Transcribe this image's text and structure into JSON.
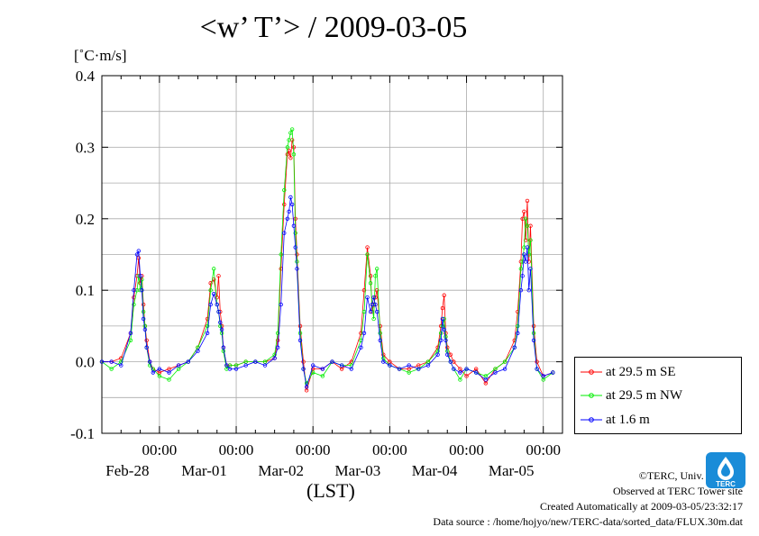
{
  "chart_data": {
    "type": "line",
    "title": "<w’ T’> / 2009-03-05",
    "ylabel": "[˚C·m/s]",
    "xlabel": "(LST)",
    "ylim": [
      -0.1,
      0.4
    ],
    "yticks": [
      "0.4",
      "0.3",
      "0.2",
      "0.1",
      "0.0",
      "-0.1"
    ],
    "x_tick_time": "00:00",
    "x_tick_dates": [
      "Feb-28",
      "Mar-01",
      "Mar-02",
      "Mar-03",
      "Mar-04",
      "Mar-05"
    ],
    "grid": true,
    "legend_position": "right-bottom",
    "x_hours": [
      0,
      3,
      6,
      9,
      10,
      11,
      11.5,
      12,
      12.5,
      13,
      13.5,
      14,
      15,
      16,
      18,
      21,
      24,
      27,
      30,
      33,
      34,
      35,
      36,
      36.5,
      37,
      37.5,
      38,
      39,
      40,
      42,
      45,
      48,
      51,
      54,
      55,
      56,
      57,
      58,
      58.5,
      59,
      59.5,
      60,
      60.5,
      61,
      62,
      63,
      64,
      66,
      69,
      72,
      75,
      78,
      81,
      82,
      83,
      84,
      84.5,
      85,
      85.5,
      86,
      87,
      88,
      90,
      93,
      96,
      99,
      102,
      105,
      106,
      106.5,
      107,
      107.5,
      108,
      109,
      110,
      112,
      114,
      117,
      120,
      123,
      126,
      129,
      130,
      131,
      131.5,
      132,
      132.5,
      133,
      133.5,
      134,
      135,
      136,
      138,
      141
    ],
    "series": [
      {
        "name": "at 29.5 m SE",
        "color": "#ff0000",
        "values": [
          0.0,
          0.0,
          0.005,
          0.04,
          0.09,
          0.12,
          0.145,
          0.11,
          0.12,
          0.08,
          0.05,
          0.03,
          0.0,
          -0.01,
          -0.015,
          -0.01,
          -0.005,
          0.0,
          0.02,
          0.06,
          0.11,
          0.115,
          0.09,
          0.12,
          0.07,
          0.05,
          0.02,
          -0.005,
          -0.005,
          -0.005,
          0.0,
          0.0,
          0.0,
          0.005,
          0.03,
          0.13,
          0.22,
          0.29,
          0.295,
          0.285,
          0.31,
          0.3,
          0.2,
          0.15,
          0.05,
          0.0,
          -0.04,
          -0.01,
          -0.01,
          0.0,
          -0.01,
          0.0,
          0.04,
          0.1,
          0.16,
          0.12,
          0.07,
          0.08,
          0.09,
          0.1,
          0.05,
          0.01,
          0.0,
          -0.01,
          -0.01,
          -0.005,
          0.0,
          0.02,
          0.05,
          0.075,
          0.093,
          0.04,
          0.02,
          0.01,
          0.0,
          -0.01,
          -0.02,
          -0.01,
          -0.03,
          -0.01,
          0.0,
          0.03,
          0.07,
          0.14,
          0.2,
          0.21,
          0.17,
          0.225,
          0.14,
          0.19,
          0.05,
          0.0,
          -0.02,
          -0.015
        ]
      },
      {
        "name": "at 29.5 m NW",
        "color": "#00ee00",
        "values": [
          0.0,
          -0.01,
          0.0,
          0.03,
          0.08,
          0.1,
          0.12,
          0.1,
          0.115,
          0.07,
          0.05,
          0.02,
          -0.005,
          -0.01,
          -0.02,
          -0.025,
          -0.01,
          0.0,
          0.02,
          0.05,
          0.1,
          0.13,
          0.08,
          0.07,
          0.05,
          0.04,
          0.015,
          -0.01,
          -0.005,
          -0.005,
          0.0,
          0.0,
          0.0,
          0.01,
          0.04,
          0.15,
          0.24,
          0.3,
          0.31,
          0.32,
          0.325,
          0.29,
          0.18,
          0.14,
          0.04,
          -0.01,
          -0.03,
          -0.015,
          -0.02,
          0.0,
          -0.005,
          -0.005,
          0.03,
          0.07,
          0.15,
          0.11,
          0.08,
          0.06,
          0.12,
          0.13,
          0.04,
          0.005,
          -0.005,
          -0.01,
          -0.015,
          -0.01,
          0.0,
          0.015,
          0.04,
          0.05,
          0.06,
          0.035,
          0.015,
          0.0,
          -0.01,
          -0.025,
          -0.01,
          -0.015,
          -0.02,
          -0.01,
          0.0,
          0.02,
          0.05,
          0.13,
          0.14,
          0.16,
          0.2,
          0.19,
          0.15,
          0.17,
          0.04,
          -0.01,
          -0.025,
          -0.015
        ]
      },
      {
        "name": "at 1.6 m",
        "color": "#0000ff",
        "values": [
          0.0,
          0.0,
          -0.005,
          0.04,
          0.1,
          0.15,
          0.155,
          0.12,
          0.1,
          0.06,
          0.045,
          0.02,
          0.0,
          -0.015,
          -0.01,
          -0.015,
          -0.005,
          0.0,
          0.015,
          0.04,
          0.08,
          0.095,
          0.08,
          0.07,
          0.055,
          0.045,
          0.02,
          -0.005,
          -0.01,
          -0.01,
          -0.005,
          0.0,
          -0.005,
          0.005,
          0.02,
          0.08,
          0.18,
          0.2,
          0.21,
          0.23,
          0.22,
          0.19,
          0.16,
          0.13,
          0.03,
          -0.01,
          -0.035,
          -0.005,
          -0.01,
          0.0,
          -0.005,
          -0.01,
          0.02,
          0.04,
          0.09,
          0.07,
          0.08,
          0.09,
          0.08,
          0.07,
          0.03,
          0.0,
          -0.005,
          -0.01,
          -0.005,
          -0.01,
          -0.005,
          0.01,
          0.03,
          0.06,
          0.045,
          0.03,
          0.01,
          0.0,
          -0.01,
          -0.015,
          -0.01,
          -0.015,
          -0.025,
          -0.015,
          -0.01,
          0.02,
          0.04,
          0.1,
          0.12,
          0.15,
          0.14,
          0.16,
          0.1,
          0.13,
          0.03,
          -0.01,
          -0.02,
          -0.015
        ]
      }
    ]
  },
  "footer": {
    "copyright": "©TERC, Univ. Tsukuba",
    "observed": "Observed at TERC Tower site",
    "created": "Created Automatically at 2009-03-05/23:32:17",
    "source": "Data source : /home/hojyo/new/TERC-data/sorted_data/FLUX.30m.dat"
  },
  "logo": {
    "text": "TERC",
    "color": "#1a8cd8"
  }
}
